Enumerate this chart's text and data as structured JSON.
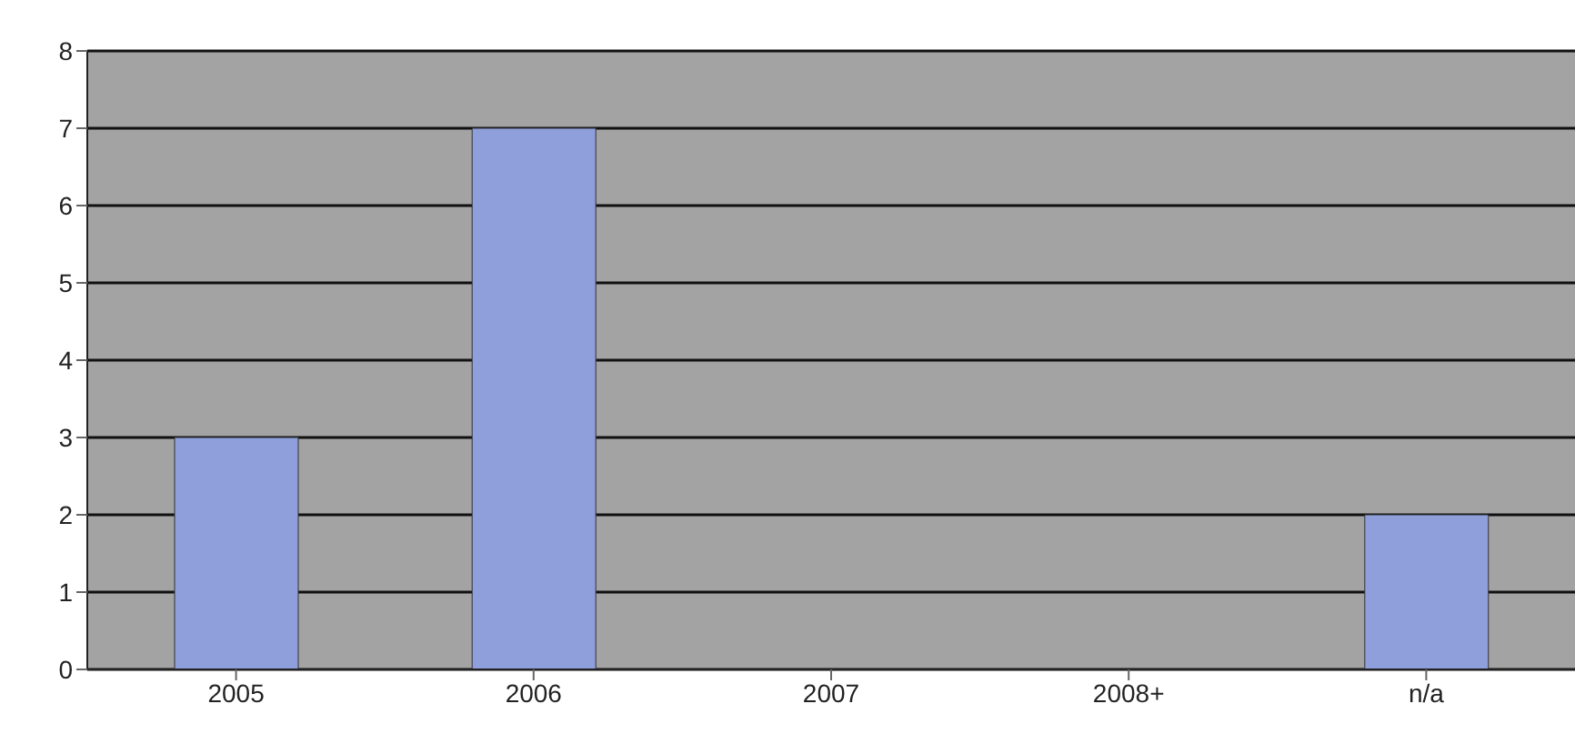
{
  "chart_data": {
    "type": "bar",
    "categories": [
      "2005",
      "2006",
      "2007",
      "2008+",
      "n/a"
    ],
    "values": [
      3,
      7,
      0,
      0,
      2
    ],
    "color": "#8e9fdc",
    "ylim": [
      0,
      8
    ],
    "yticks": [
      0,
      1,
      2,
      3,
      4,
      5,
      6,
      7,
      8
    ],
    "grid": "y",
    "legend": false
  }
}
